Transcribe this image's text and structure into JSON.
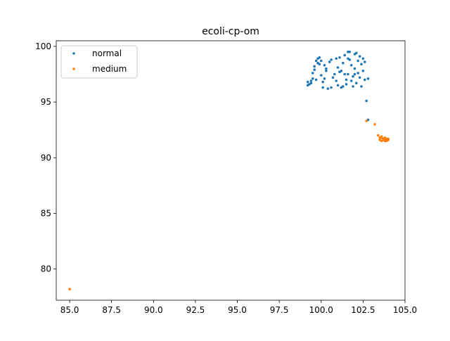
{
  "chart_data": {
    "type": "scatter",
    "title": "ecoli-cp-om",
    "xlabel": "",
    "ylabel": "",
    "xlim": [
      84.2,
      105.0
    ],
    "ylim": [
      77.2,
      100.5
    ],
    "xticks": [
      85.0,
      87.5,
      90.0,
      92.5,
      95.0,
      97.5,
      100.0,
      102.5,
      105.0
    ],
    "xtick_labels": [
      "85.0",
      "87.5",
      "90.0",
      "92.5",
      "95.0",
      "97.5",
      "100.0",
      "102.5",
      "105.0"
    ],
    "yticks": [
      80,
      85,
      90,
      95,
      100
    ],
    "ytick_labels": [
      "80",
      "85",
      "90",
      "95",
      "100"
    ],
    "grid": false,
    "legend": {
      "placement": "upper-left",
      "entries": [
        "normal",
        "medium"
      ]
    },
    "series": [
      {
        "name": "normal",
        "color": "#1f77b4",
        "points": [
          [
            99.2,
            96.8
          ],
          [
            99.2,
            96.5
          ],
          [
            99.4,
            96.7
          ],
          [
            99.5,
            97.1
          ],
          [
            99.5,
            97.6
          ],
          [
            99.6,
            97.9
          ],
          [
            99.6,
            98.2
          ],
          [
            99.7,
            97.0
          ],
          [
            99.8,
            98.5
          ],
          [
            99.8,
            98.9
          ],
          [
            99.9,
            99.0
          ],
          [
            100.0,
            98.7
          ],
          [
            100.0,
            97.4
          ],
          [
            100.1,
            96.8
          ],
          [
            100.1,
            96.3
          ],
          [
            100.2,
            98.3
          ],
          [
            100.3,
            97.8
          ],
          [
            100.4,
            96.2
          ],
          [
            100.5,
            98.6
          ],
          [
            100.6,
            98.8
          ],
          [
            100.7,
            97.2
          ],
          [
            100.8,
            97.5
          ],
          [
            100.9,
            96.9
          ],
          [
            101.0,
            96.5
          ],
          [
            101.0,
            98.1
          ],
          [
            101.1,
            99.0
          ],
          [
            101.2,
            96.3
          ],
          [
            101.2,
            97.8
          ],
          [
            101.3,
            98.5
          ],
          [
            101.4,
            99.2
          ],
          [
            101.5,
            97.0
          ],
          [
            101.5,
            96.6
          ],
          [
            101.6,
            98.9
          ],
          [
            101.6,
            97.5
          ],
          [
            101.7,
            99.5
          ],
          [
            101.8,
            98.3
          ],
          [
            101.8,
            96.9
          ],
          [
            101.9,
            97.3
          ],
          [
            102.0,
            99.3
          ],
          [
            102.0,
            98.0
          ],
          [
            102.1,
            96.7
          ],
          [
            102.2,
            98.7
          ],
          [
            102.2,
            97.6
          ],
          [
            102.3,
            99.1
          ],
          [
            102.4,
            98.4
          ],
          [
            102.4,
            96.4
          ],
          [
            102.5,
            97.8
          ],
          [
            102.6,
            98.6
          ],
          [
            102.6,
            97.0
          ],
          [
            102.7,
            95.1
          ],
          [
            102.8,
            97.1
          ],
          [
            102.8,
            93.4
          ],
          [
            99.3,
            96.6
          ],
          [
            99.4,
            96.9
          ],
          [
            99.7,
            98.7
          ],
          [
            99.9,
            98.4
          ],
          [
            100.3,
            98.0
          ],
          [
            100.9,
            98.9
          ],
          [
            101.3,
            96.4
          ],
          [
            101.4,
            97.5
          ],
          [
            101.7,
            98.8
          ],
          [
            101.9,
            96.4
          ],
          [
            102.1,
            99.4
          ],
          [
            102.3,
            97.2
          ],
          [
            102.5,
            98.9
          ],
          [
            100.2,
            97.1
          ],
          [
            100.6,
            96.3
          ],
          [
            101.1,
            97.7
          ],
          [
            101.6,
            99.5
          ],
          [
            102.0,
            97.5
          ]
        ]
      },
      {
        "name": "medium",
        "color": "#ff7f0e",
        "points": [
          [
            85.0,
            78.2
          ],
          [
            102.7,
            93.3
          ],
          [
            103.2,
            93.0
          ],
          [
            103.4,
            92.0
          ],
          [
            103.5,
            91.8
          ],
          [
            103.5,
            91.6
          ],
          [
            103.6,
            91.9
          ],
          [
            103.6,
            91.5
          ],
          [
            103.7,
            91.7
          ],
          [
            103.7,
            91.6
          ],
          [
            103.8,
            91.6
          ],
          [
            103.8,
            91.8
          ],
          [
            103.9,
            91.5
          ],
          [
            103.9,
            91.7
          ],
          [
            104.0,
            91.6
          ],
          [
            104.0,
            91.7
          ],
          [
            103.6,
            91.8
          ],
          [
            103.8,
            91.5
          ]
        ]
      }
    ]
  }
}
